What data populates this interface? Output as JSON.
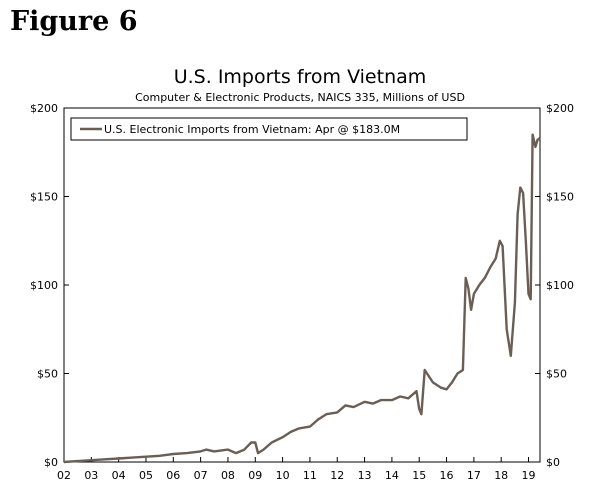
{
  "figure_label": "Figure 6",
  "chart_data": {
    "type": "line",
    "title": "U.S. Imports from Vietnam",
    "subtitle": "Computer & Electronic Products, NAICS 335, Millions of USD",
    "xlabel": "",
    "ylabel": "",
    "x_tick_labels": [
      "02",
      "03",
      "04",
      "05",
      "06",
      "07",
      "08",
      "09",
      "10",
      "11",
      "12",
      "13",
      "14",
      "15",
      "16",
      "17",
      "18",
      "19"
    ],
    "y_tick_labels_left": [
      "$0",
      "$50",
      "$100",
      "$150",
      "$200"
    ],
    "y_tick_labels_right": [
      "$0",
      "$50",
      "$100",
      "$150",
      "$200"
    ],
    "xlim": [
      2002.0,
      2019.42
    ],
    "ylim": [
      0,
      200
    ],
    "grid": false,
    "legend_position": "top-left",
    "series": [
      {
        "name": "U.S. Electronic Imports from Vietnam: Apr @ $183.0M",
        "color": "#6b5e55",
        "x": [
          2002.0,
          2002.5,
          2003.0,
          2003.5,
          2004.0,
          2004.5,
          2005.0,
          2005.5,
          2006.0,
          2006.5,
          2007.0,
          2007.2,
          2007.5,
          2008.0,
          2008.3,
          2008.6,
          2008.85,
          2009.0,
          2009.1,
          2009.3,
          2009.6,
          2010.0,
          2010.3,
          2010.6,
          2011.0,
          2011.3,
          2011.6,
          2012.0,
          2012.3,
          2012.6,
          2013.0,
          2013.3,
          2013.6,
          2014.0,
          2014.3,
          2014.6,
          2014.9,
          2015.0,
          2015.08,
          2015.2,
          2015.5,
          2015.8,
          2016.0,
          2016.2,
          2016.4,
          2016.6,
          2016.7,
          2016.8,
          2016.9,
          2017.0,
          2017.2,
          2017.4,
          2017.6,
          2017.8,
          2017.95,
          2018.05,
          2018.2,
          2018.35,
          2018.5,
          2018.6,
          2018.7,
          2018.8,
          2018.9,
          2019.0,
          2019.08,
          2019.15,
          2019.25,
          2019.33,
          2019.42
        ],
        "values": [
          0,
          0.5,
          1,
          1.5,
          2,
          2.5,
          3,
          3.5,
          4.5,
          5,
          6,
          7,
          6,
          7,
          5,
          7,
          11,
          11,
          5,
          7,
          11,
          14,
          17,
          19,
          20,
          24,
          27,
          28,
          32,
          31,
          34,
          33,
          35,
          35,
          37,
          36,
          40,
          30,
          27,
          52,
          45,
          42,
          41,
          45,
          50,
          52,
          104,
          98,
          86,
          95,
          100,
          104,
          110,
          115,
          125,
          122,
          75,
          60,
          90,
          140,
          155,
          152,
          125,
          95,
          92,
          185,
          178,
          182,
          183
        ]
      }
    ]
  }
}
